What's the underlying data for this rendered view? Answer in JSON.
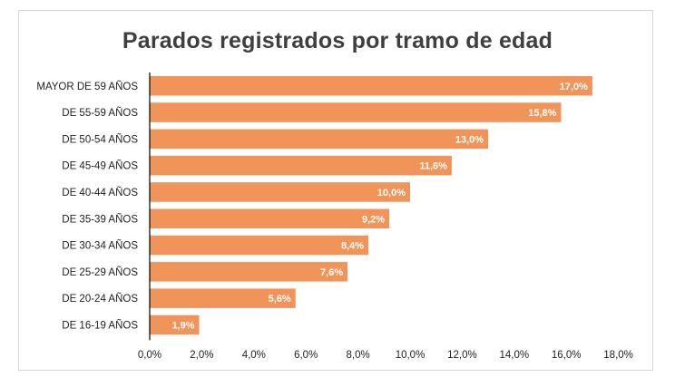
{
  "chart_data": {
    "type": "bar",
    "orientation": "horizontal",
    "title": "Parados registrados por tramo de edad",
    "categories": [
      "MAYOR DE 59 AÑOS",
      "DE 55-59 AÑOS",
      "DE 50-54 AÑOS",
      "DE 45-49 AÑOS",
      "DE 40-44 AÑOS",
      "DE 35-39 AÑOS",
      "DE 30-34 AÑOS",
      "DE 25-29 AÑOS",
      "DE 20-24 AÑOS",
      "DE 16-19 AÑOS"
    ],
    "values": [
      17.0,
      15.8,
      13.0,
      11.6,
      10.0,
      9.2,
      8.4,
      7.6,
      5.6,
      1.9
    ],
    "data_labels": [
      "17,0%",
      "15,8%",
      "13,0%",
      "11,6%",
      "10,0%",
      "9,2%",
      "8,4%",
      "7,6%",
      "5,6%",
      "1,9%"
    ],
    "xticks": [
      0,
      2,
      4,
      6,
      8,
      10,
      12,
      14,
      16,
      18
    ],
    "xtick_labels": [
      "0,0%",
      "2,0%",
      "4,0%",
      "6,0%",
      "8,0%",
      "10,0%",
      "12,0%",
      "14,0%",
      "16,0%",
      "18,0%"
    ],
    "xlim": [
      0,
      18
    ],
    "xlabel": "",
    "ylabel": "",
    "grid": false,
    "legend": "none",
    "bar_color": "#f0945a"
  }
}
